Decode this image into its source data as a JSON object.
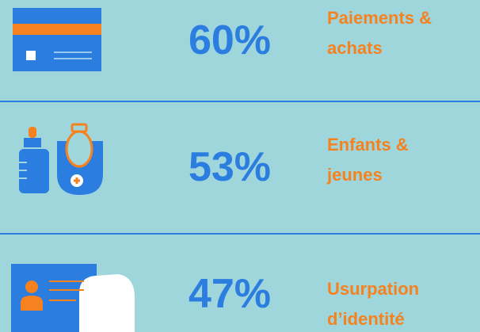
{
  "items": [
    {
      "value": "60%",
      "label_lines": [
        "Paiements &",
        "achats"
      ]
    },
    {
      "value": "53%",
      "label_lines": [
        "Enfants &",
        "jeunes"
      ]
    },
    {
      "value": "47%",
      "label_lines": [
        "Usurpation",
        "d’identité"
      ]
    }
  ]
}
